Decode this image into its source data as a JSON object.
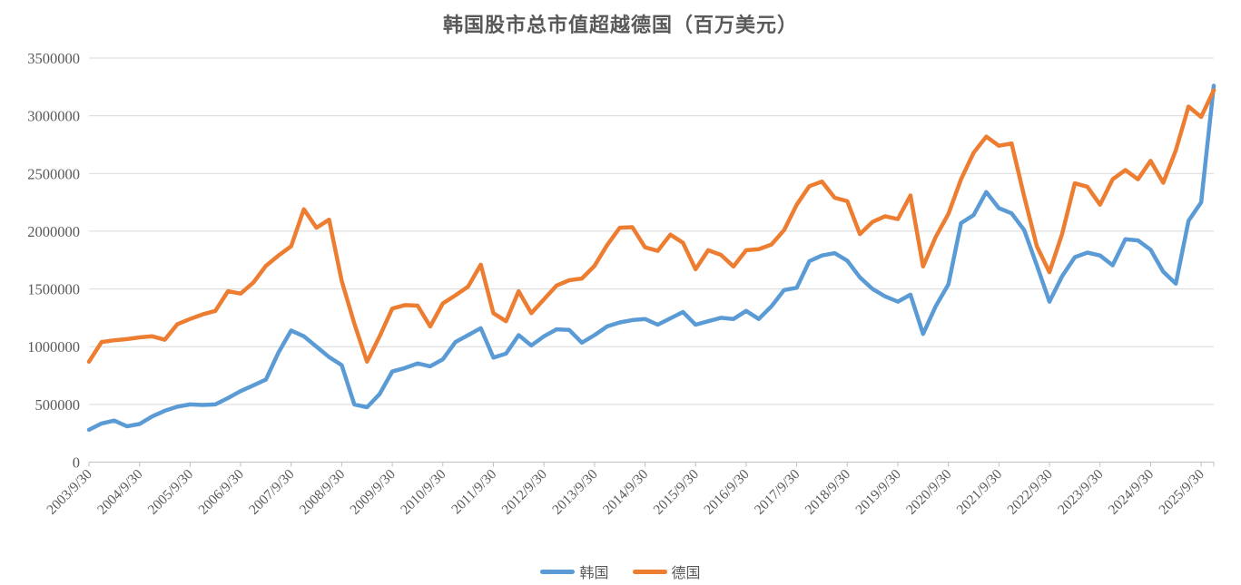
{
  "title": "韩国股市总市值超越德国（百万美元）",
  "colors": {
    "korea_line": "#5B9BD5",
    "germany_line": "#ED7D31",
    "grid": "#D9D9D9",
    "axis": "#BFBFBF",
    "text": "#595959"
  },
  "chart_data": {
    "type": "line",
    "title": "韩国股市总市值超越德国（百万美元）",
    "xlabel": "",
    "ylabel": "",
    "ylim": [
      0,
      3500000
    ],
    "y_ticks": [
      0,
      500000,
      1000000,
      1500000,
      2000000,
      2500000,
      3000000,
      3500000
    ],
    "grid": true,
    "legend_position": "bottom",
    "x_unit": "quarter-end dates",
    "x_first": "2003/9/30",
    "x_last": "2025/12/31",
    "n_points": 90,
    "points_per_label": 4,
    "x_tick_labels": [
      "2003/9/30",
      "2004/9/30",
      "2005/9/30",
      "2006/9/30",
      "2007/9/30",
      "2008/9/30",
      "2009/9/30",
      "2010/9/30",
      "2011/9/30",
      "2012/9/30",
      "2013/9/30",
      "2014/9/30",
      "2015/9/30",
      "2016/9/30",
      "2017/9/30",
      "2018/9/30",
      "2019/9/30",
      "2020/9/30",
      "2021/9/30",
      "2022/9/30",
      "2023/9/30",
      "2024/9/30",
      "2025/9/30"
    ],
    "series": [
      {
        "name": "韩国",
        "color": "#5B9BD5",
        "values": [
          280000,
          335000,
          360000,
          310000,
          330000,
          395000,
          445000,
          480000,
          500000,
          495000,
          500000,
          555000,
          615000,
          665000,
          715000,
          950000,
          1140000,
          1090000,
          1000000,
          910000,
          840000,
          500000,
          475000,
          590000,
          785000,
          815000,
          855000,
          830000,
          890000,
          1040000,
          1100000,
          1160000,
          905000,
          940000,
          1100000,
          1010000,
          1090000,
          1150000,
          1145000,
          1035000,
          1100000,
          1175000,
          1210000,
          1230000,
          1240000,
          1190000,
          1245000,
          1300000,
          1190000,
          1220000,
          1250000,
          1240000,
          1310000,
          1240000,
          1350000,
          1490000,
          1510000,
          1740000,
          1790000,
          1810000,
          1745000,
          1600000,
          1500000,
          1435000,
          1390000,
          1450000,
          1110000,
          1350000,
          1540000,
          2070000,
          2140000,
          2340000,
          2200000,
          2155000,
          2010000,
          1705000,
          1390000,
          1610000,
          1775000,
          1815000,
          1790000,
          1705000,
          1930000,
          1920000,
          1840000,
          1650000,
          1545000,
          2090000,
          2250000,
          3260000
        ]
      },
      {
        "name": "德国",
        "color": "#ED7D31",
        "values": [
          870000,
          1040000,
          1055000,
          1065000,
          1080000,
          1090000,
          1060000,
          1195000,
          1240000,
          1280000,
          1310000,
          1480000,
          1460000,
          1555000,
          1700000,
          1790000,
          1870000,
          2190000,
          2030000,
          2100000,
          1570000,
          1200000,
          870000,
          1090000,
          1330000,
          1360000,
          1355000,
          1175000,
          1375000,
          1445000,
          1520000,
          1710000,
          1290000,
          1220000,
          1480000,
          1290000,
          1410000,
          1530000,
          1575000,
          1590000,
          1700000,
          1880000,
          2030000,
          2035000,
          1860000,
          1830000,
          1970000,
          1900000,
          1670000,
          1835000,
          1795000,
          1695000,
          1835000,
          1845000,
          1885000,
          2010000,
          2230000,
          2390000,
          2430000,
          2290000,
          2260000,
          1975000,
          2080000,
          2130000,
          2105000,
          2310000,
          1695000,
          1950000,
          2150000,
          2450000,
          2680000,
          2820000,
          2740000,
          2760000,
          2300000,
          1870000,
          1645000,
          1975000,
          2415000,
          2385000,
          2230000,
          2450000,
          2530000,
          2450000,
          2610000,
          2420000,
          2700000,
          3080000,
          2990000,
          3220000
        ]
      }
    ]
  }
}
